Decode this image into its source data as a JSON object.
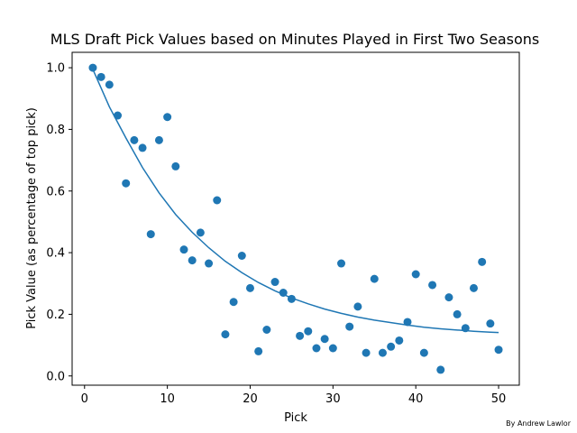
{
  "chart_data": {
    "type": "scatter",
    "title": "MLS Draft Pick Values based on Minutes Played in First Two Seasons",
    "xlabel": "Pick",
    "ylabel": "Pick Value (as percentage of top pick)",
    "credit": "By Andrew Lawlor",
    "xlim": [
      -1.5,
      52.5
    ],
    "ylim": [
      -0.03,
      1.05
    ],
    "x_ticks": [
      0,
      10,
      20,
      30,
      40,
      50
    ],
    "y_ticks": [
      0.0,
      0.2,
      0.4,
      0.6,
      0.8,
      1.0
    ],
    "x_tick_labels": [
      "0",
      "10",
      "20",
      "30",
      "40",
      "50"
    ],
    "y_tick_labels": [
      "0.0",
      "0.2",
      "0.4",
      "0.6",
      "0.8",
      "1.0"
    ],
    "grid": false,
    "colors": {
      "series": "#1f77b4",
      "axis": "#000000"
    },
    "series": [
      {
        "kind": "points",
        "x": [
          1,
          2,
          3,
          4,
          5,
          6,
          7,
          8,
          9,
          10,
          11,
          12,
          13,
          14,
          15,
          16,
          17,
          18,
          19,
          20,
          21,
          22,
          23,
          24,
          25,
          26,
          27,
          28,
          29,
          30,
          31,
          32,
          33,
          34,
          35,
          36,
          37,
          38,
          39,
          40,
          41,
          42,
          43,
          44,
          45,
          46,
          47,
          48,
          49,
          50
        ],
        "y": [
          1.0,
          0.97,
          0.945,
          0.845,
          0.625,
          0.765,
          0.74,
          0.46,
          0.765,
          0.84,
          0.68,
          0.41,
          0.375,
          0.465,
          0.365,
          0.57,
          0.135,
          0.24,
          0.39,
          0.285,
          0.08,
          0.15,
          0.305,
          0.27,
          0.25,
          0.13,
          0.145,
          0.09,
          0.12,
          0.09,
          0.365,
          0.16,
          0.225,
          0.075,
          0.315,
          0.075,
          0.095,
          0.115,
          0.175,
          0.33,
          0.075,
          0.295,
          0.02,
          0.255,
          0.2,
          0.155,
          0.285,
          0.37,
          0.17,
          0.085
        ]
      },
      {
        "kind": "fit-line",
        "x": [
          1,
          3,
          5,
          7,
          9,
          11,
          13,
          15,
          17,
          19,
          21,
          23,
          25,
          27,
          29,
          31,
          33,
          35,
          37,
          39,
          41,
          43,
          45,
          47,
          49,
          50
        ],
        "y": [
          0.995,
          0.873,
          0.772,
          0.676,
          0.594,
          0.524,
          0.466,
          0.416,
          0.372,
          0.335,
          0.303,
          0.276,
          0.253,
          0.234,
          0.217,
          0.203,
          0.191,
          0.181,
          0.173,
          0.165,
          0.158,
          0.153,
          0.149,
          0.145,
          0.142,
          0.141
        ]
      }
    ]
  }
}
